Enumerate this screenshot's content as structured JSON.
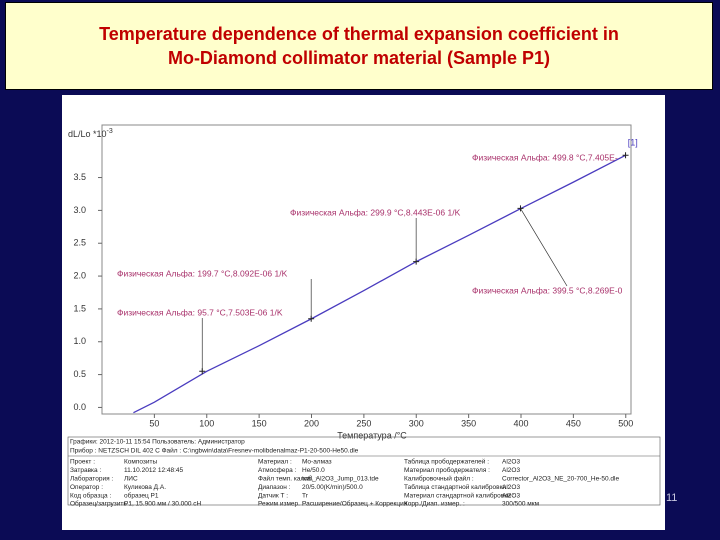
{
  "slide": {
    "title_lines": [
      "Temperature dependence of thermal expansion coefficient in",
      "Mo-Diamond collimator material (Sample P1)"
    ],
    "number": "11"
  },
  "chart_data": {
    "type": "line",
    "ylabel": "dL/Lo *10",
    "ylabel_exponent": "-3",
    "xlabel": "Температура /°C",
    "series": [
      {
        "name": "[1]",
        "color": "#4a3cbf",
        "x": [
          30,
          50,
          100,
          150,
          200,
          250,
          300,
          350,
          400,
          450,
          500
        ],
        "values": [
          -0.08,
          0.08,
          0.55,
          0.94,
          1.35,
          1.78,
          2.22,
          2.62,
          3.03,
          3.43,
          3.84
        ]
      }
    ],
    "xlim": [
      0,
      505
    ],
    "ylim": [
      -0.1,
      4.3
    ],
    "xticks": [
      50,
      100,
      150,
      200,
      250,
      300,
      350,
      400,
      450,
      500
    ],
    "yticks": [
      {
        "value": 0,
        "label": "0.0"
      },
      0.5,
      {
        "value": 1,
        "label": "1.0"
      },
      1.5,
      {
        "value": 2,
        "label": "2.0"
      },
      2.5,
      {
        "value": 3,
        "label": "3.0"
      },
      3.5
    ],
    "annotations": [
      {
        "text": "Физическая Альфа: 95.7 °C,7.503E-06 1/K",
        "x": 95.7,
        "y": 0.55
      },
      {
        "text": "Физическая Альфа: 199.7 °C,8.092E-06 1/K",
        "x": 199.7,
        "y": 1.35
      },
      {
        "text": "Физическая Альфа: 299.9 °C,8.443E-06 1/K",
        "x": 299.9,
        "y": 2.22
      },
      {
        "text": "Физическая Альфа: 399.5 °C,8.269E-0",
        "x": 399.5,
        "y": 3.03
      },
      {
        "text": "Физическая Альфа: 499.8 °C,7.405E-",
        "x": 499.8,
        "y": 3.84
      }
    ]
  },
  "footer": {
    "header": "Графики: 2012-10-11 15:54  Пользователь: Администратор",
    "device": "Прибор : NETZSCH DIL 402 C    Файл : C:\\ngbwin\\data\\Fresnev-molibdenalmaz-P1-20-500-He50.dle",
    "rows": [
      [
        "Проект :",
        "Композиты",
        "Материал :",
        "Mo-алмаз",
        "Таблица прободержателей :",
        "Al2O3"
      ],
      [
        "Затравка :",
        "11.10.2012 12:48:45",
        "Атмосфера :",
        "He/50.0",
        "Материал прободержателя :",
        "Al2O3"
      ],
      [
        "Лаборатория :",
        "ЛИС",
        "Файл темп. калиб. :",
        "tcal_Al2O3_Jump_013.tde",
        "Калибровочный файл :",
        "Corrector_Al2O3_NE_20-700_He-50.dle"
      ],
      [
        "Оператор :",
        "Куликова Д.А.",
        "Диапазон :",
        "20/5.00(K/min)/500.0",
        "Таблица стандартной калибровки :",
        "Al2O3"
      ],
      [
        "Код образца :",
        "образец P1",
        "Датчик Т :",
        "Tr",
        "Материал стандартной калибровки :",
        "Al2O3"
      ],
      [
        "Образец/загрузить :",
        "P1, 15.900 мм / 30.000 сН",
        "Режим измер. :",
        "Расширение/Образец + Коррекция",
        "Корр./Диап. измер. :",
        "300/500 мкм"
      ]
    ]
  }
}
